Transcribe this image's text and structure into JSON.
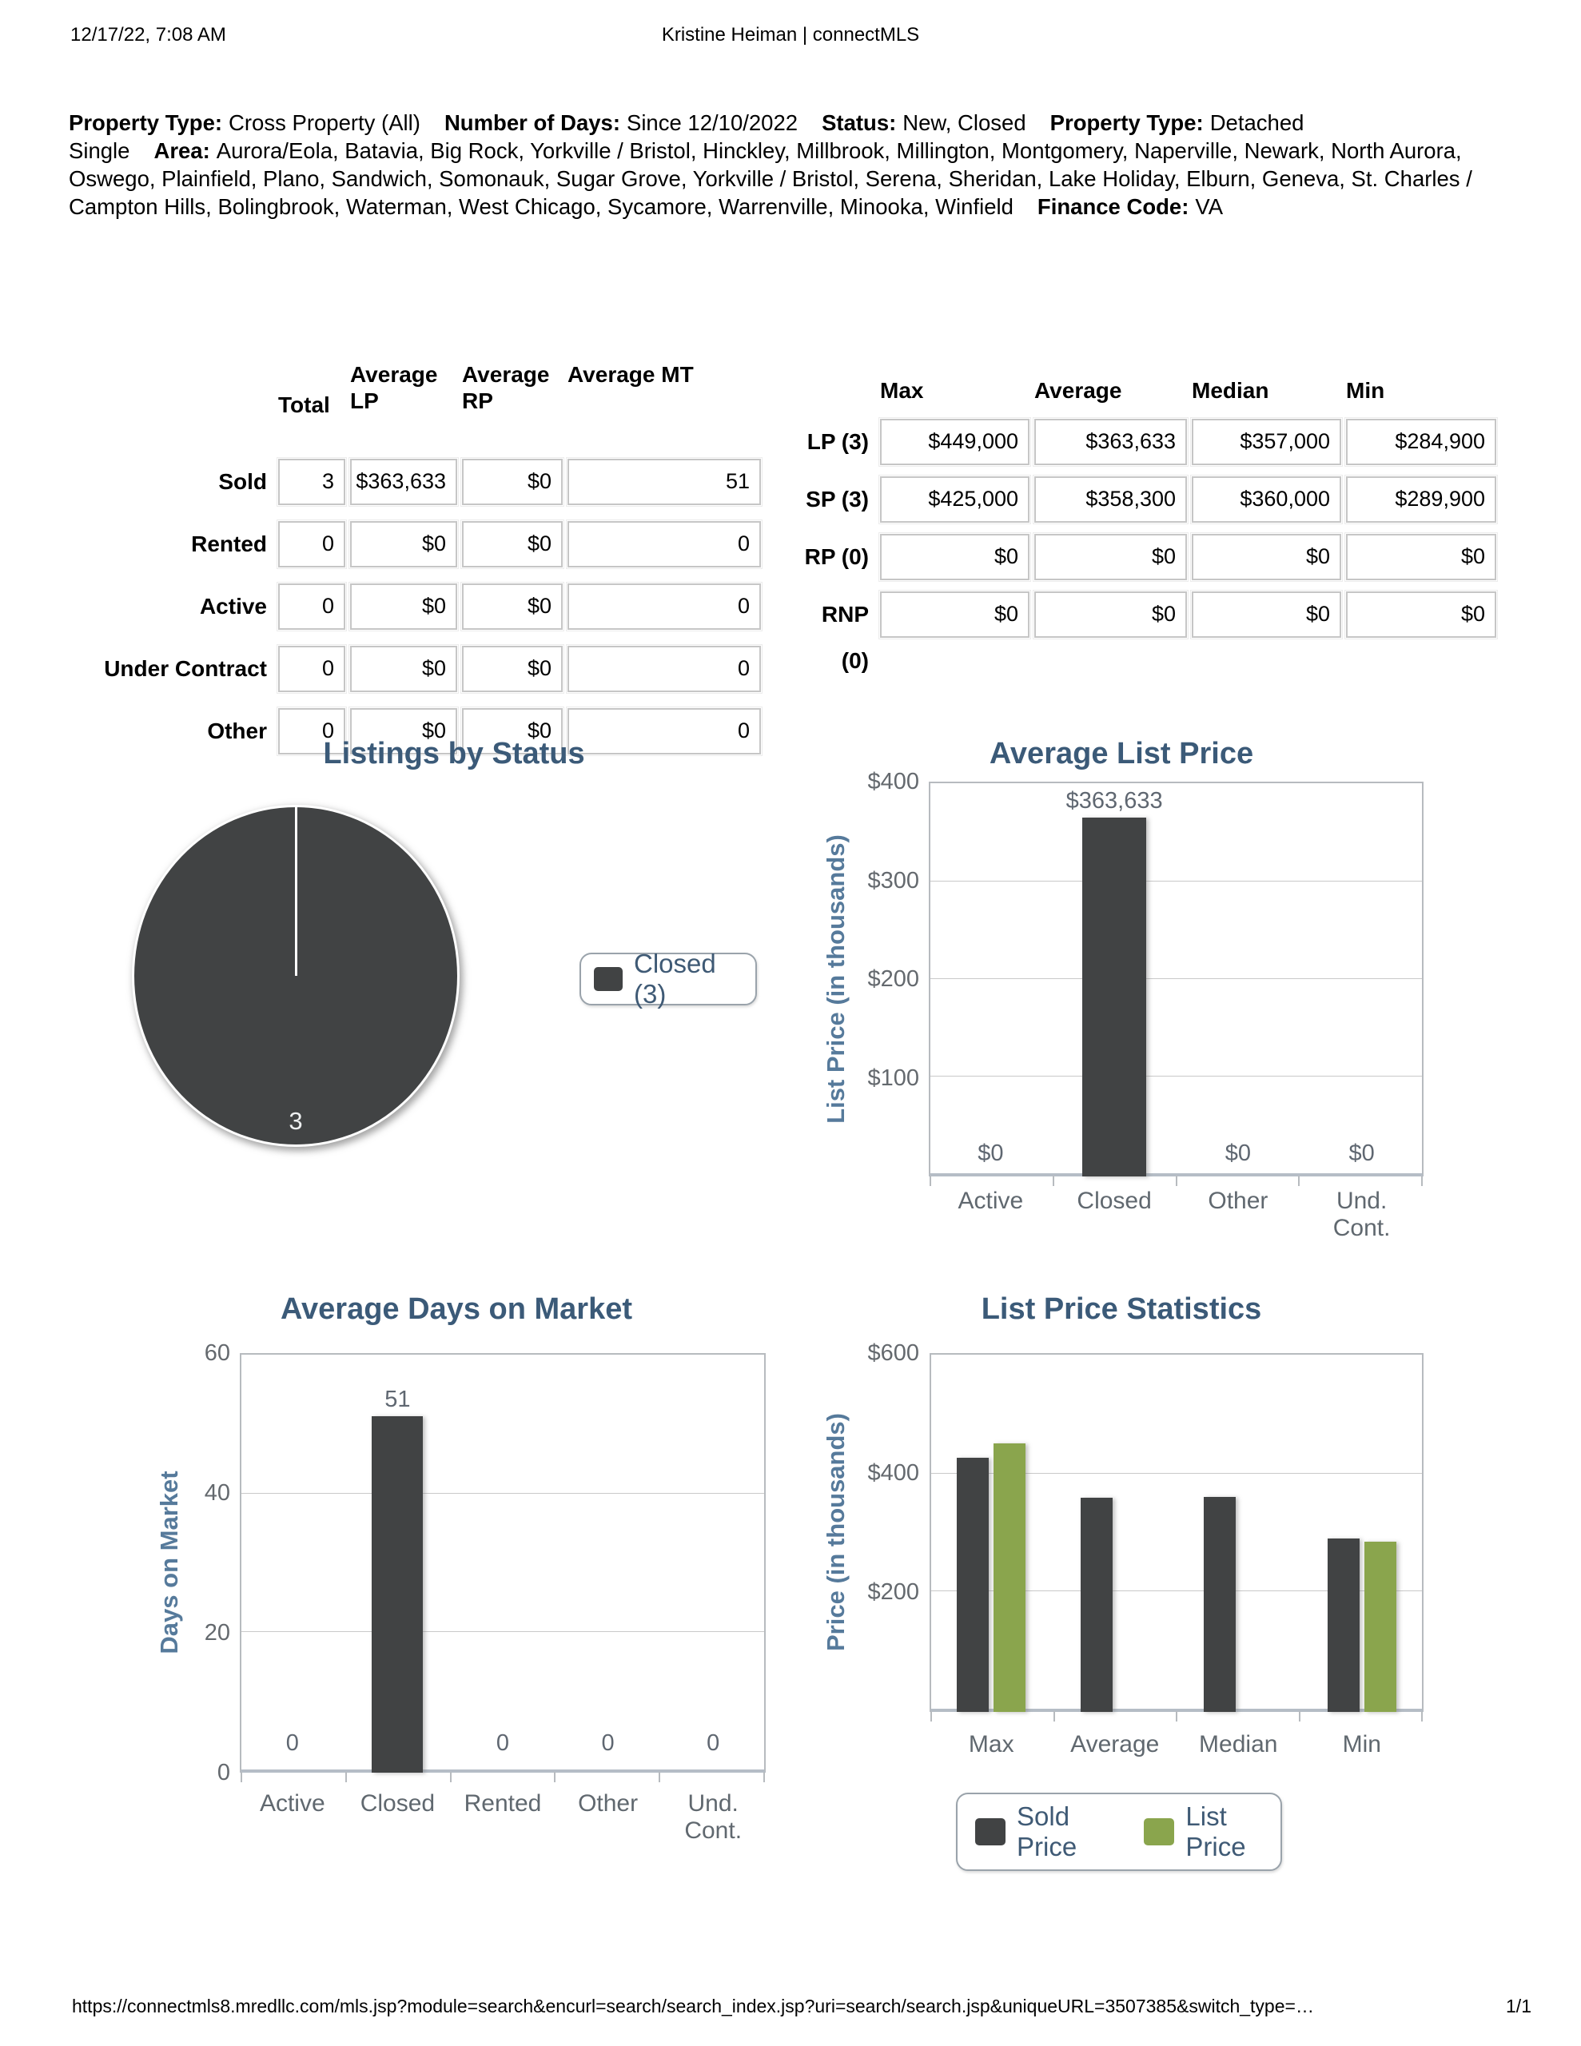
{
  "header": {
    "datetime": "12/17/22, 7:08 AM",
    "title": "Kristine Heiman | connectMLS"
  },
  "criteria": {
    "segments": [
      {
        "label": "Property Type:",
        "value": "Cross Property (All)"
      },
      {
        "label": "Number of Days:",
        "value": "Since 12/10/2022"
      },
      {
        "label": "Status:",
        "value": "New, Closed"
      },
      {
        "label": "Property Type:",
        "value": "Detached Single"
      },
      {
        "label": "Area:",
        "value": "Aurora/Eola, Batavia, Big Rock, Yorkville / Bristol, Hinckley, Millbrook, Millington, Montgomery, Naperville, Newark, North Aurora, Oswego, Plainfield, Plano, Sandwich, Somonauk, Sugar Grove, Yorkville / Bristol, Serena, Sheridan, Lake Holiday, Elburn, Geneva, St. Charles / Campton Hills, Bolingbrook, Waterman, West Chicago, Sycamore, Warrenville, Minooka, Winfield"
      },
      {
        "label": "Finance Code:",
        "value": "VA"
      }
    ]
  },
  "status_table": {
    "columns": [
      "Total",
      "Average\nLP",
      "Average\nRP",
      "Average MT"
    ],
    "rows": [
      {
        "label": "Sold",
        "values": [
          "3",
          "$363,633",
          "$0",
          "51"
        ]
      },
      {
        "label": "Rented",
        "values": [
          "0",
          "$0",
          "$0",
          "0"
        ]
      },
      {
        "label": "Active",
        "values": [
          "0",
          "$0",
          "$0",
          "0"
        ]
      },
      {
        "label": "Under Contract",
        "values": [
          "0",
          "$0",
          "$0",
          "0"
        ]
      },
      {
        "label": "Other",
        "values": [
          "0",
          "$0",
          "$0",
          "0"
        ]
      }
    ]
  },
  "price_table": {
    "columns": [
      "Max",
      "Average",
      "Median",
      "Min"
    ],
    "rows": [
      {
        "label": "LP (3)",
        "values": [
          "$449,000",
          "$363,633",
          "$357,000",
          "$284,900"
        ]
      },
      {
        "label": "SP (3)",
        "values": [
          "$425,000",
          "$358,300",
          "$360,000",
          "$289,900"
        ]
      },
      {
        "label": "RP (0)",
        "values": [
          "$0",
          "$0",
          "$0",
          "$0"
        ]
      },
      {
        "label": "RNP (0)",
        "values": [
          "$0",
          "$0",
          "$0",
          "$0"
        ]
      }
    ]
  },
  "chart_data": [
    {
      "type": "pie",
      "title": "Listings by Status",
      "slices": [
        {
          "label": "Closed",
          "value": 3
        }
      ],
      "slice_value_label": "3",
      "legend": [
        {
          "label": "Closed (3)",
          "color_key": "dark"
        }
      ],
      "legend_position": "right"
    },
    {
      "type": "bar",
      "title": "Average List Price",
      "ylabel": "List Price (in thousands)",
      "categories": [
        "Active",
        "Closed",
        "Other",
        "Und.\nCont."
      ],
      "series": [
        {
          "name": "List Price",
          "color_key": "dark",
          "values": [
            0,
            363.633,
            0,
            0
          ],
          "labels": [
            "$0",
            "$363,633",
            "$0",
            "$0"
          ]
        }
      ],
      "ylim": [
        0,
        400
      ],
      "yticks": [
        {
          "v": 400,
          "t": "$400"
        },
        {
          "v": 300,
          "t": "$300"
        },
        {
          "v": 200,
          "t": "$200"
        },
        {
          "v": 100,
          "t": "$100"
        }
      ],
      "grid": true
    },
    {
      "type": "bar",
      "title": "Average Days on Market",
      "ylabel": "Days on Market",
      "categories": [
        "Active",
        "Closed",
        "Rented",
        "Other",
        "Und.\nCont."
      ],
      "series": [
        {
          "name": "Days on Market",
          "color_key": "dark",
          "values": [
            0,
            51,
            0,
            0,
            0
          ],
          "labels": [
            "0",
            "51",
            "0",
            "0",
            "0"
          ]
        }
      ],
      "ylim": [
        0,
        60
      ],
      "yticks": [
        {
          "v": 60,
          "t": "60"
        },
        {
          "v": 40,
          "t": "40"
        },
        {
          "v": 20,
          "t": "20"
        },
        {
          "v": 0,
          "t": "0"
        }
      ],
      "grid": true
    },
    {
      "type": "bar",
      "title": "List Price Statistics",
      "ylabel": "Price (in thousands)",
      "categories": [
        "Max",
        "Average",
        "Median",
        "Min"
      ],
      "series": [
        {
          "name": "Sold Price",
          "color_key": "dark",
          "values": [
            425.0,
            358.3,
            360.0,
            289.9
          ]
        },
        {
          "name": "List Price",
          "color_key": "green",
          "values": [
            449.0,
            null,
            null,
            284.9
          ]
        }
      ],
      "ylim": [
        0,
        600
      ],
      "yticks": [
        {
          "v": 600,
          "t": "$600"
        },
        {
          "v": 400,
          "t": "$400"
        },
        {
          "v": 200,
          "t": "$200"
        }
      ],
      "legend": [
        {
          "label": "Sold Price",
          "color_key": "dark"
        },
        {
          "label": "List Price",
          "color_key": "green"
        }
      ],
      "legend_position": "bottom",
      "grid": true
    }
  ],
  "footer": {
    "url": "https://connectmls8.mredllc.com/mls.jsp?module=search&encurl=search/search_index.jsp?uri=search/search.jsp&uniqueURL=3507385&switch_type=…",
    "page": "1/1"
  },
  "colors": {
    "dark": "#414344",
    "green": "#8aa54d",
    "chart_title": "#3b5a78",
    "axis_title": "#567a9b",
    "tick_label": "#64696e",
    "value_label": "#5f6771",
    "category_label": "#60686f",
    "legend_text": "#3f5a75",
    "grid": "#c9c9c9",
    "plot_border": "#b7bbbf",
    "box_border": "#c6c6c6",
    "legend_border": "#9aa3ab"
  }
}
